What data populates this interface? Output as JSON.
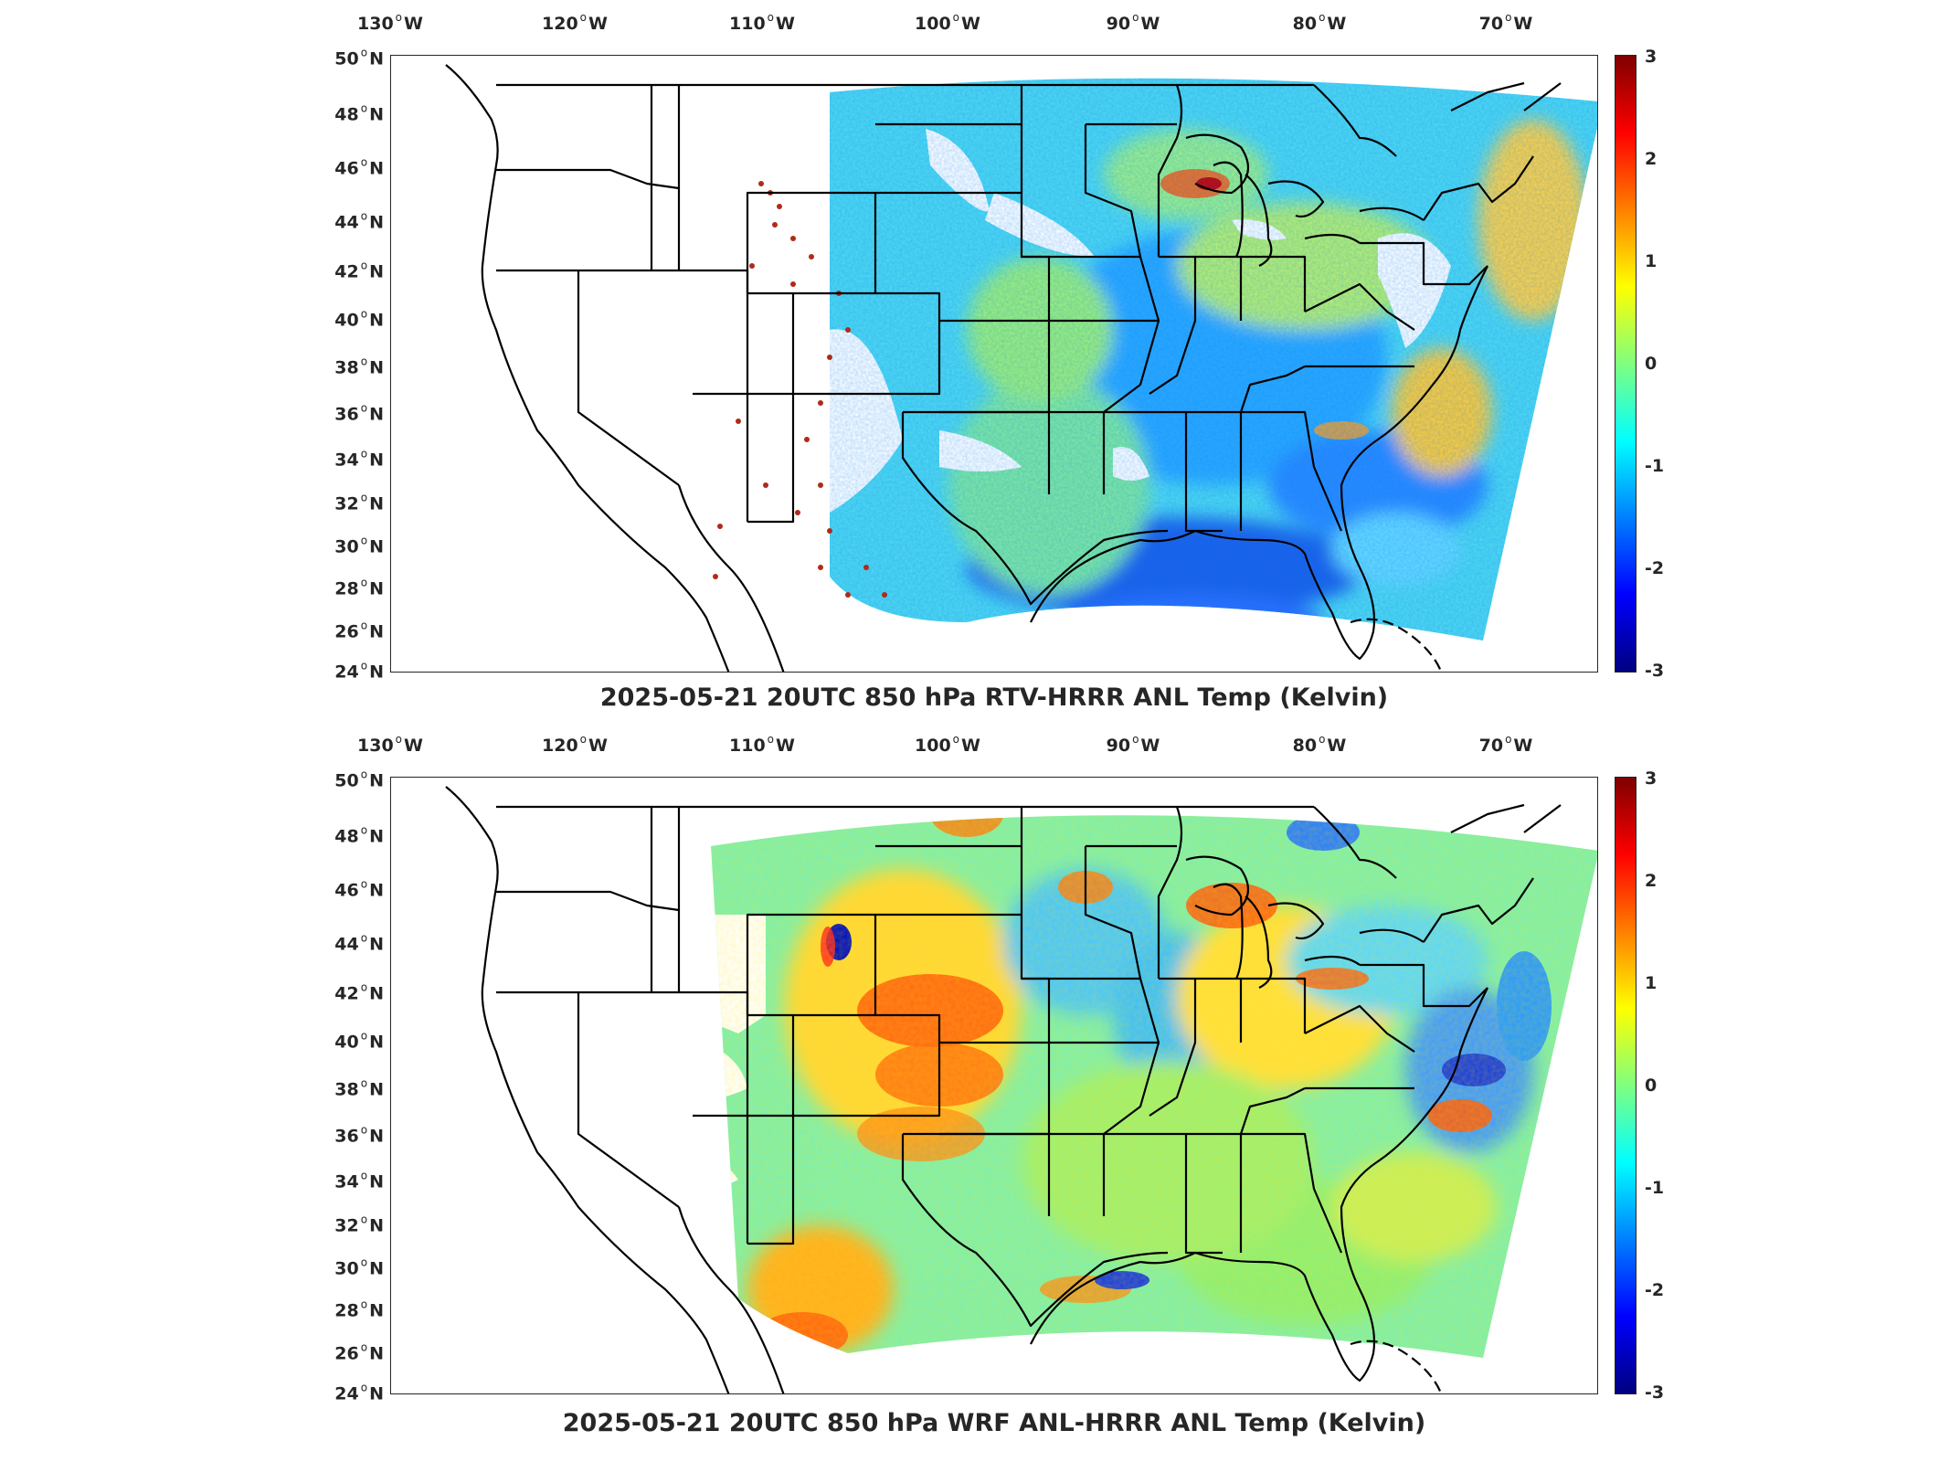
{
  "panels": [
    {
      "title": "2025-05-21 20UTC 850 hPa RTV-HRRR ANL Temp (Kelvin)",
      "field": "rtv",
      "lon_labels": [
        "130",
        "120",
        "110",
        "100",
        "90",
        "80",
        "70"
      ],
      "lat_labels": [
        "50",
        "48",
        "46",
        "44",
        "42",
        "40",
        "38",
        "36",
        "34",
        "32",
        "30",
        "28",
        "26",
        "24"
      ],
      "colorbar_ticks": [
        "3",
        "2",
        "1",
        "0",
        "-1",
        "-2",
        "-3"
      ]
    },
    {
      "title": "2025-05-21 20UTC 850 hPa WRF ANL-HRRR ANL Temp (Kelvin)",
      "field": "wrf",
      "lon_labels": [
        "130",
        "120",
        "110",
        "100",
        "90",
        "80",
        "70"
      ],
      "lat_labels": [
        "50",
        "48",
        "46",
        "44",
        "42",
        "40",
        "38",
        "36",
        "34",
        "32",
        "30",
        "28",
        "26",
        "24"
      ],
      "colorbar_ticks": [
        "3",
        "2",
        "1",
        "0",
        "-1",
        "-2",
        "-3"
      ]
    }
  ],
  "units": {
    "west": "W",
    "north": "N"
  },
  "colormap": [
    "#00007f",
    "#0000ff",
    "#007fff",
    "#00ffff",
    "#7fff7f",
    "#ffff00",
    "#ff7f00",
    "#ff0000",
    "#7f0000"
  ],
  "colorbar_range": [
    -3,
    3
  ]
}
